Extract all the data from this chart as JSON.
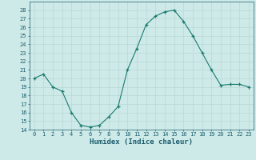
{
  "x": [
    0,
    1,
    2,
    3,
    4,
    5,
    6,
    7,
    8,
    9,
    10,
    11,
    12,
    13,
    14,
    15,
    16,
    17,
    18,
    19,
    20,
    21,
    22,
    23
  ],
  "y": [
    20,
    20.5,
    19,
    18.5,
    16,
    14.5,
    14.3,
    14.5,
    15.5,
    16.7,
    21,
    23.5,
    26.3,
    27.3,
    27.8,
    28,
    26.7,
    25,
    23,
    21,
    19.2,
    19.3,
    19.3,
    19
  ],
  "xlabel": "Humidex (Indice chaleur)",
  "ylim": [
    14,
    29
  ],
  "xlim": [
    -0.5,
    23.5
  ],
  "yticks": [
    14,
    15,
    16,
    17,
    18,
    19,
    20,
    21,
    22,
    23,
    24,
    25,
    26,
    27,
    28
  ],
  "xticks": [
    0,
    1,
    2,
    3,
    4,
    5,
    6,
    7,
    8,
    9,
    10,
    11,
    12,
    13,
    14,
    15,
    16,
    17,
    18,
    19,
    20,
    21,
    22,
    23
  ],
  "line_color": "#1a7a6e",
  "marker": "+",
  "bg_color": "#ceeae8",
  "grid_color": "#b8d8d4",
  "label_color": "#1a5c6e",
  "tick_color": "#1a5c6e",
  "font_family": "monospace",
  "tick_fontsize": 5.0,
  "xlabel_fontsize": 6.5
}
